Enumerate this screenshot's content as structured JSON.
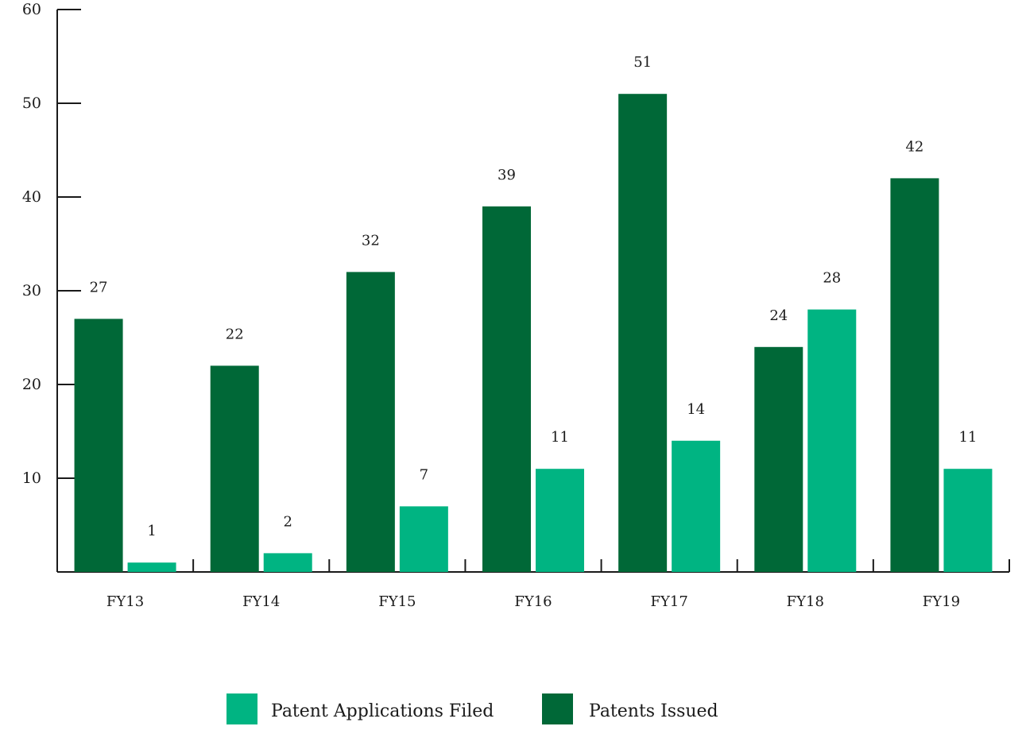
{
  "chart_data": {
    "type": "bar",
    "title": "",
    "xlabel": "",
    "ylabel": "",
    "ylim": [
      0,
      60
    ],
    "yticks": [
      10,
      20,
      30,
      40,
      50,
      60
    ],
    "categories": [
      "FY13",
      "FY14",
      "FY15",
      "FY16",
      "FY17",
      "FY18",
      "FY19"
    ],
    "series": [
      {
        "name": "Patents Issued",
        "color": "#006837",
        "values": [
          27,
          22,
          32,
          39,
          51,
          24,
          42
        ]
      },
      {
        "name": "Patent Applications Filed",
        "color": "#00b482",
        "values": [
          1,
          2,
          7,
          11,
          14,
          28,
          11
        ]
      }
    ],
    "legend": {
      "placement": "bottom-center",
      "order": [
        "Patent Applications Filed",
        "Patents Issued"
      ]
    },
    "data_labels": true,
    "grid": false
  }
}
